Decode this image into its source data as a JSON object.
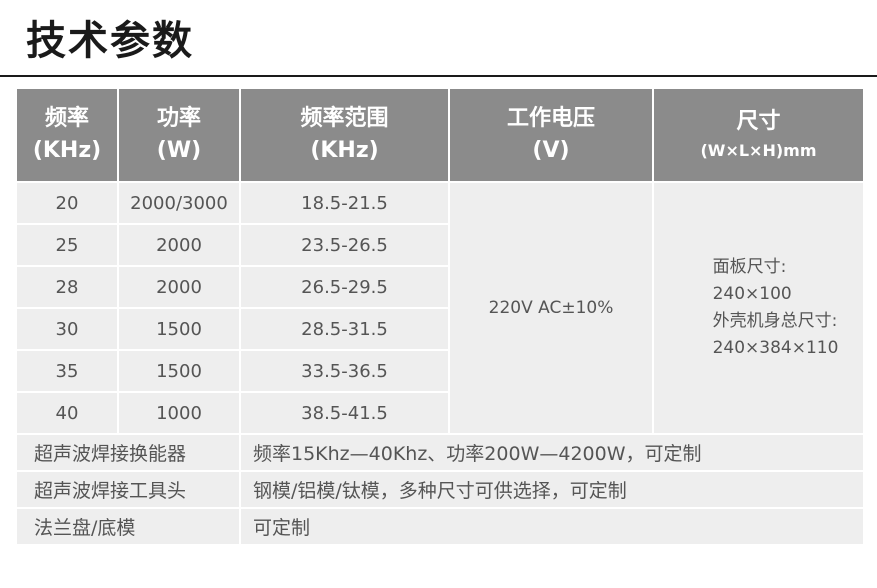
{
  "page": {
    "title": "技术参数"
  },
  "table": {
    "headers": {
      "freq": {
        "line1": "频率",
        "line2": "(KHz)"
      },
      "power": {
        "line1": "功率",
        "line2": "(W)"
      },
      "range": {
        "line1": "频率范围",
        "line2": "(KHz)"
      },
      "voltage": {
        "line1": "工作电压",
        "line2": "(V)"
      },
      "size": {
        "line1": "尺寸",
        "line2": "(W×L×H)mm"
      }
    },
    "rows": [
      {
        "freq": "20",
        "power": "2000/3000",
        "range": "18.5-21.5"
      },
      {
        "freq": "25",
        "power": "2000",
        "range": "23.5-26.5"
      },
      {
        "freq": "28",
        "power": "2000",
        "range": "26.5-29.5"
      },
      {
        "freq": "30",
        "power": "1500",
        "range": "28.5-31.5"
      },
      {
        "freq": "35",
        "power": "1500",
        "range": "33.5-36.5"
      },
      {
        "freq": "40",
        "power": "1000",
        "range": "38.5-41.5"
      }
    ],
    "voltage": "220V AC±10%",
    "size": {
      "panel_label": "面板尺寸:",
      "panel_value": "240×100",
      "case_label": "外壳机身总尺寸:",
      "case_value": "240×384×110"
    },
    "extras": [
      {
        "label": "超声波焊接换能器",
        "value": "频率15Khz—40Khz、功率200W—4200W，可定制"
      },
      {
        "label": "超声波焊接工具头",
        "value": "钢模/铝模/钛模，多种尺寸可供选择，可定制"
      },
      {
        "label": "法兰盘/底模",
        "value": "可定制"
      }
    ]
  }
}
